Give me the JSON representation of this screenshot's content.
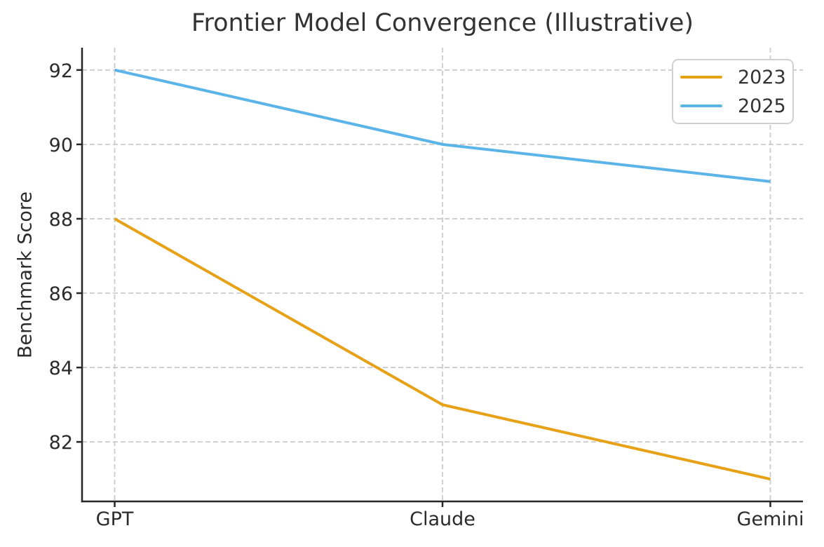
{
  "chart_data": {
    "type": "line",
    "title": "Frontier Model Convergence (Illustrative)",
    "xlabel": "",
    "ylabel": "Benchmark Score",
    "categories": [
      "GPT",
      "Claude",
      "Gemini"
    ],
    "series": [
      {
        "name": "2023",
        "color": "#E6A117",
        "values": [
          88,
          83,
          81
        ]
      },
      {
        "name": "2025",
        "color": "#5BB4E8",
        "values": [
          92,
          90,
          89
        ]
      }
    ],
    "yticks": [
      82,
      84,
      86,
      88,
      90,
      92
    ],
    "ylim": [
      80.4,
      92.6
    ],
    "grid": true,
    "grid_style": "dashed",
    "legend_position": "upper-right",
    "colors": {
      "grid": "#cbcbcb",
      "axis": "#262626",
      "text": "#2b2b2b",
      "title": "#333333",
      "legend_border": "#d0d0d0"
    }
  }
}
